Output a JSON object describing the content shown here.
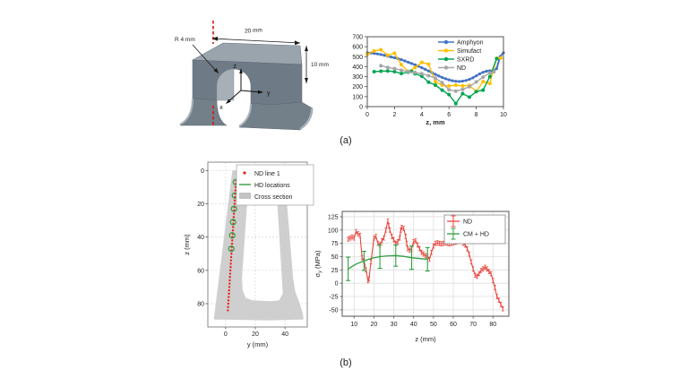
{
  "page": {
    "background": "#ffffff",
    "panel_a_label": "(a)",
    "panel_b_label": "(b)"
  },
  "model3d": {
    "dims": {
      "width": "20 mm",
      "radius": "R 4 mm",
      "height": "10 mm"
    },
    "axes": {
      "x": "x",
      "y": "y",
      "z": "z"
    },
    "colors": {
      "top_face": "#9aa4ad",
      "front_face": "#6e7a85",
      "notch_surface": "#a7b0b7",
      "scan_line": "#dd1111"
    }
  },
  "chart_data": [
    {
      "id": "comparison",
      "type": "line",
      "xlabel": "z, mm",
      "xlim": [
        0,
        10
      ],
      "ylim": [
        0,
        700
      ],
      "xticks": [
        0,
        2,
        4,
        6,
        8,
        10
      ],
      "yticks": [
        0,
        100,
        200,
        300,
        400,
        500,
        600,
        700
      ],
      "legend_position": "top-right",
      "series": [
        {
          "name": "Amphyon",
          "color": "#4472c4",
          "x": [
            0,
            0.25,
            0.5,
            0.75,
            1,
            1.25,
            1.5,
            1.75,
            2,
            2.25,
            2.5,
            2.75,
            3,
            3.25,
            3.5,
            3.75,
            4,
            4.25,
            4.5,
            4.75,
            5,
            5.25,
            5.5,
            5.75,
            6,
            6.25,
            6.5,
            6.75,
            7,
            7.25,
            7.5,
            7.75,
            8,
            8.25,
            8.5,
            8.75,
            9,
            9.25,
            9.5,
            9.75,
            10
          ],
          "y": [
            540,
            537,
            533,
            528,
            522,
            514,
            505,
            497,
            489,
            480,
            470,
            458,
            445,
            432,
            419,
            405,
            390,
            374,
            357,
            340,
            323,
            307,
            292,
            279,
            268,
            259,
            254,
            252,
            255,
            262,
            273,
            288,
            308,
            328,
            344,
            355,
            359,
            360,
            380,
            500,
            540
          ]
        },
        {
          "name": "Simufact",
          "color": "#ffc000",
          "x": [
            0,
            0.5,
            1,
            1.5,
            2,
            2.5,
            3,
            3.5,
            4,
            4.5,
            5,
            5.5,
            6,
            6.5,
            7,
            7.5,
            8,
            8.5,
            9,
            9.5,
            9.8
          ],
          "y": [
            525,
            557,
            570,
            515,
            535,
            420,
            352,
            390,
            443,
            425,
            250,
            215,
            207,
            215,
            207,
            213,
            150,
            250,
            232,
            485,
            487
          ]
        },
        {
          "name": "SXRD",
          "color": "#00a551",
          "x": [
            0.5,
            1,
            1.5,
            2,
            2.5,
            3,
            3.25,
            3.5,
            4,
            4.5,
            5,
            5.5,
            6,
            6.5,
            7,
            7.5,
            8,
            8.5,
            9,
            9.5
          ],
          "y": [
            350,
            355,
            357,
            350,
            332,
            345,
            353,
            330,
            305,
            245,
            215,
            165,
            120,
            30,
            130,
            95,
            150,
            165,
            300,
            480
          ]
        },
        {
          "name": "ND",
          "color": "#a6a6a6",
          "x": [
            1,
            1.5,
            2,
            2.5,
            3,
            3.5,
            4,
            4.5,
            5,
            5.5,
            6,
            6.5,
            7,
            7.5,
            8,
            8.5,
            9,
            9.3
          ],
          "y": [
            410,
            392,
            380,
            365,
            352,
            342,
            330,
            310,
            285,
            240,
            168,
            155,
            172,
            200,
            247,
            295,
            338,
            348
          ]
        }
      ]
    },
    {
      "id": "cross_section",
      "type": "scatter",
      "xlabel": "y (mm)",
      "ylabel": "z (mm)",
      "xlim": [
        -12,
        55
      ],
      "ylim": [
        -5,
        94
      ],
      "y_inverted": true,
      "xticks": [
        0,
        20,
        40
      ],
      "yticks": [
        0,
        20,
        40,
        60,
        80
      ],
      "legend": [
        {
          "label": "ND line 1",
          "type": "dot",
          "color": "#e8231a"
        },
        {
          "label": "HD locations",
          "type": "line",
          "color": "#2f9e41"
        },
        {
          "label": "Cross section",
          "type": "patch",
          "color": "#c3c3c3"
        }
      ],
      "cross_section_polygon": [
        [
          4.5,
          0
        ],
        [
          16,
          0
        ],
        [
          11,
          65
        ],
        [
          11.5,
          72
        ],
        [
          13.5,
          76.5
        ],
        [
          18,
          78
        ],
        [
          30,
          78.5
        ],
        [
          36,
          78
        ],
        [
          38.5,
          74
        ],
        [
          33.5,
          0
        ],
        [
          39.5,
          0
        ],
        [
          45.5,
          65
        ],
        [
          47,
          73
        ],
        [
          50,
          80
        ],
        [
          52,
          86
        ],
        [
          52.5,
          89.5
        ],
        [
          30,
          90
        ],
        [
          -8,
          89.5
        ]
      ],
      "nd_line": {
        "z": [
          6,
          8,
          10,
          12,
          14,
          16,
          18,
          20,
          22,
          24,
          26,
          28,
          30,
          32,
          34,
          36,
          38,
          40,
          42,
          44,
          46,
          48,
          50,
          52,
          54,
          56,
          58,
          60,
          62,
          64,
          66,
          68,
          70,
          72,
          74,
          76,
          78,
          80,
          82,
          84
        ],
        "y": [
          7.0,
          6.86,
          6.72,
          6.58,
          6.44,
          6.29,
          6.15,
          6.01,
          5.87,
          5.73,
          5.59,
          5.45,
          5.31,
          5.16,
          5.02,
          4.88,
          4.74,
          4.6,
          4.46,
          4.32,
          4.18,
          4.03,
          3.89,
          3.75,
          3.61,
          3.47,
          3.33,
          3.19,
          3.05,
          2.9,
          2.76,
          2.62,
          2.48,
          2.34,
          2.2,
          2.06,
          1.92,
          1.77,
          1.63,
          1.49
        ]
      },
      "hd_locations": {
        "z": [
          7,
          15,
          23,
          31,
          39,
          47
        ],
        "y": [
          6.9,
          6.2,
          5.6,
          5.0,
          4.4,
          3.8
        ]
      }
    },
    {
      "id": "stress",
      "type": "errorbar",
      "xlabel": "z (mm)",
      "ylabel_sigma": {
        "symbol": "σ",
        "subscript": "y",
        "unit": "(MPa)"
      },
      "xlim": [
        4,
        88
      ],
      "ylim": [
        -62,
        135
      ],
      "xticks": [
        10,
        20,
        30,
        40,
        50,
        60,
        70,
        80
      ],
      "yticks": [
        -50,
        -25,
        0,
        25,
        50,
        75,
        100,
        125
      ],
      "grid": true,
      "series": [
        {
          "name": "ND",
          "color": "#e8453c",
          "yerr": 4,
          "x": [
            7,
            8,
            9,
            10,
            11,
            12,
            13,
            14,
            15,
            16,
            17,
            17.5,
            18.5,
            20,
            21,
            22,
            23,
            24,
            25,
            26,
            27,
            27.5,
            28,
            29,
            30,
            31,
            32,
            33,
            33.5,
            34,
            35,
            36,
            36.5,
            37,
            38,
            39,
            40,
            41,
            42,
            43,
            44,
            45,
            46,
            47,
            48,
            49,
            50,
            51,
            52,
            53,
            54,
            55,
            56,
            57,
            58,
            59,
            60,
            61,
            62,
            63,
            64,
            65,
            66,
            67,
            68,
            69,
            70,
            71,
            72,
            73,
            74,
            75,
            76,
            77,
            78,
            79,
            80,
            81,
            82,
            83,
            84,
            85
          ],
          "y": [
            83,
            85,
            87,
            85,
            97,
            93,
            90,
            48,
            42,
            25,
            5,
            8,
            40,
            85,
            88,
            75,
            72,
            80,
            85,
            100,
            117,
            108,
            100,
            88,
            82,
            75,
            78,
            85,
            100,
            105,
            103,
            88,
            75,
            65,
            62,
            65,
            78,
            80,
            72,
            65,
            58,
            55,
            52,
            50,
            45,
            58,
            70,
            75,
            76,
            75,
            74,
            75,
            76,
            75,
            74,
            75,
            76,
            77,
            78,
            80,
            79,
            75,
            72,
            65,
            55,
            40,
            27,
            15,
            13,
            18,
            24,
            27,
            30,
            27,
            22,
            18,
            5,
            -8,
            -25,
            -32,
            -40,
            -48
          ]
        },
        {
          "name": "CM + HD",
          "color": "#2f9e41",
          "x": [
            7,
            11,
            15,
            19,
            23,
            27,
            31,
            35,
            39,
            43,
            47
          ],
          "y": [
            27,
            36,
            42,
            47,
            50,
            51.5,
            52,
            50.5,
            48,
            46.5,
            45
          ],
          "err_x": [
            7,
            15,
            23,
            31,
            39,
            47
          ],
          "err_y": [
            27,
            42,
            50,
            52,
            48,
            45
          ],
          "yerr_values": [
            22,
            18,
            22,
            20,
            22,
            22
          ]
        }
      ]
    }
  ]
}
